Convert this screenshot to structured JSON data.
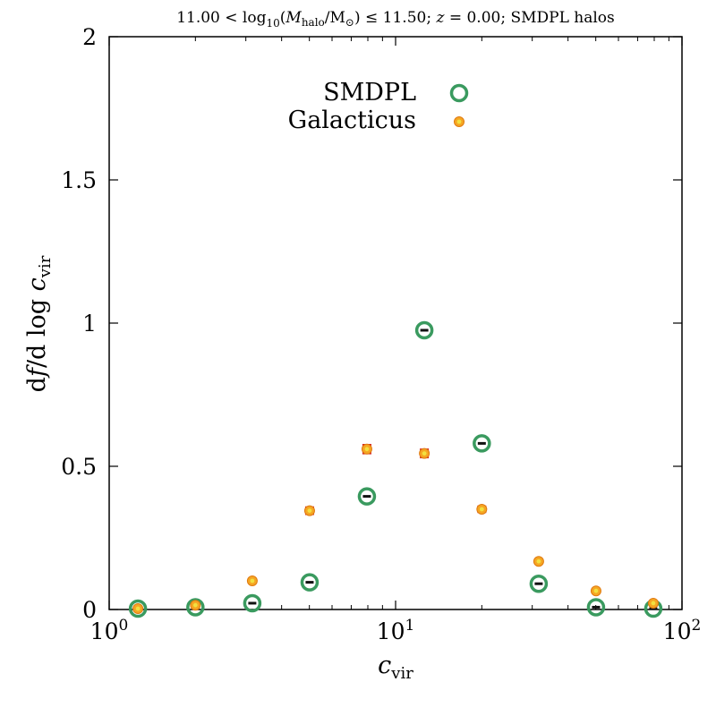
{
  "chart_data": {
    "type": "scatter",
    "title": "11.00 < log10(Mhalo/M⊙) ≤ 11.50; z = 0.00; SMDPL halos",
    "xlabel": "c_vir",
    "ylabel": "df/d log c_vir",
    "xscale": "log",
    "xlim": [
      1,
      100
    ],
    "ylim": [
      0,
      2
    ],
    "xticks": [
      {
        "value": 1,
        "base": "10",
        "exp": "0"
      },
      {
        "value": 10,
        "base": "10",
        "exp": "1"
      },
      {
        "value": 100,
        "base": "10",
        "exp": "2"
      }
    ],
    "yticks": [
      {
        "value": 0,
        "label": "0"
      },
      {
        "value": 0.5,
        "label": "0.5"
      },
      {
        "value": 1,
        "label": "1"
      },
      {
        "value": 1.5,
        "label": "1.5"
      },
      {
        "value": 2,
        "label": "2"
      }
    ],
    "legend_position": "top-center",
    "series": [
      {
        "name": "SMDPL",
        "marker": "open-circle-with-errorbar",
        "color": "#3a9a5f",
        "points": [
          {
            "x": 1.26,
            "y": 0.003,
            "err": 0.003
          },
          {
            "x": 2.0,
            "y": 0.008,
            "err": 0.004
          },
          {
            "x": 3.16,
            "y": 0.022,
            "err": 0.006
          },
          {
            "x": 5.01,
            "y": 0.095,
            "err": 0.012
          },
          {
            "x": 7.94,
            "y": 0.395,
            "err": 0.015
          },
          {
            "x": 12.6,
            "y": 0.975,
            "err": 0.02
          },
          {
            "x": 20.0,
            "y": 0.58,
            "err": 0.015
          },
          {
            "x": 31.6,
            "y": 0.09,
            "err": 0.008
          },
          {
            "x": 50.1,
            "y": 0.008,
            "err": 0.003
          },
          {
            "x": 79.4,
            "y": 0.003,
            "err": 0.002
          }
        ]
      },
      {
        "name": "Galacticus",
        "marker": "filled-circle-with-errorbar",
        "color": "#f5a623",
        "error_color": "#d42020",
        "star_color": "#f2e040",
        "points": [
          {
            "x": 1.26,
            "y": 0.003,
            "err": 0.003
          },
          {
            "x": 2.0,
            "y": 0.015,
            "err": 0.005
          },
          {
            "x": 3.16,
            "y": 0.1,
            "err": 0.006
          },
          {
            "x": 5.01,
            "y": 0.345,
            "err": 0.012
          },
          {
            "x": 7.94,
            "y": 0.56,
            "err": 0.015
          },
          {
            "x": 12.6,
            "y": 0.545,
            "err": 0.014
          },
          {
            "x": 20.0,
            "y": 0.35,
            "err": 0.01
          },
          {
            "x": 31.6,
            "y": 0.168,
            "err": 0.007
          },
          {
            "x": 50.1,
            "y": 0.065,
            "err": 0.005
          },
          {
            "x": 79.4,
            "y": 0.022,
            "err": 0.004
          }
        ]
      }
    ]
  }
}
